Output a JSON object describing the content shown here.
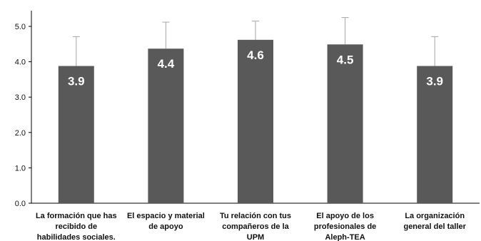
{
  "chart_data": {
    "type": "bar",
    "title": "",
    "xlabel": "",
    "ylabel": "",
    "ylim": [
      0,
      5.0
    ],
    "yticks": [
      "0.0",
      "1.0",
      "2.0",
      "3.0",
      "4.0",
      "5.0"
    ],
    "grid": false,
    "legend": "none",
    "bar_color": "#595959",
    "error_bar_color": "#a6a6a6",
    "categories": [
      [
        "La formación que has",
        "recibido de",
        "habilidades sociales."
      ],
      [
        "El espacio y material",
        "de apoyo"
      ],
      [
        "Tu relación con tus",
        "compañeros de la",
        "UPM"
      ],
      [
        "El apoyo de los",
        "profesionales de",
        "Aleph-TEA"
      ],
      [
        "La organización",
        "general del taller"
      ]
    ],
    "values": [
      3.88,
      4.37,
      4.62,
      4.49,
      3.88
    ],
    "error_upper": [
      4.71,
      5.12,
      5.15,
      5.25,
      4.71
    ],
    "data_labels": [
      "3.9",
      "4.4",
      "4.6",
      "4.5",
      "3.9"
    ]
  }
}
